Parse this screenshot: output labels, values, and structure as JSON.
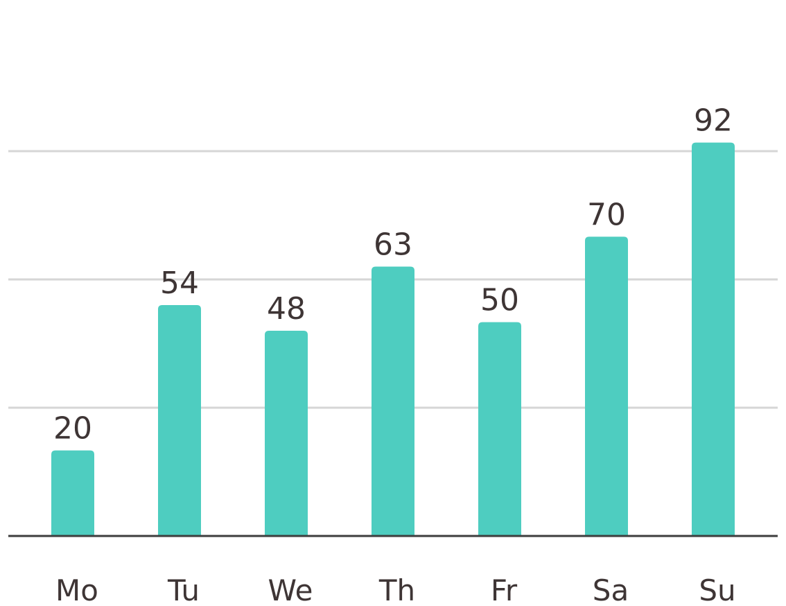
{
  "chart_data": {
    "type": "bar",
    "categories": [
      "Mo",
      "Tu",
      "We",
      "Th",
      "Fr",
      "Sa",
      "Su"
    ],
    "values": [
      20,
      54,
      48,
      63,
      50,
      70,
      92
    ],
    "title": "",
    "xlabel": "",
    "ylabel": "",
    "ylim": [
      0,
      90
    ],
    "gridlines": [
      30,
      60,
      90
    ],
    "grid": true,
    "legend": "none",
    "data_labels": true,
    "colors": {
      "bar": "#4ecdc0",
      "grid": "#d6d6d6",
      "axis": "#3d3d3d",
      "text": "#3e3535"
    }
  }
}
